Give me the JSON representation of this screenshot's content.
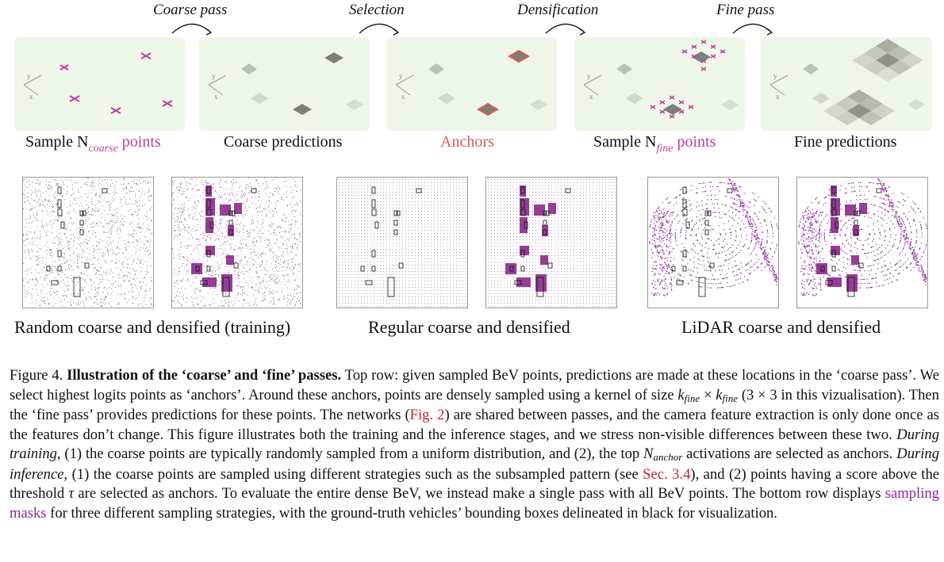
{
  "steps": [
    "Coarse pass",
    "Selection",
    "Densification",
    "Fine pass"
  ],
  "panels": {
    "p1": {
      "pre": "Sample N",
      "sub": "coarse",
      "post": " points"
    },
    "p2": {
      "label": "Coarse predictions"
    },
    "p3": {
      "label": "Anchors"
    },
    "p4": {
      "pre": "Sample N",
      "sub": "fine",
      "post": " points"
    },
    "p5": {
      "label": "Fine predictions"
    }
  },
  "axes": {
    "x": "x",
    "y": "y"
  },
  "groups": [
    "Random coarse and densified (training)",
    "Regular coarse and densified",
    "LiDAR coarse and densified"
  ],
  "caption": {
    "fig": "Figure 4. ",
    "title": "Illustration of the ‘coarse’ and ‘fine’ passes.",
    "t1": " Top row: given sampled BeV points, predictions are made at these locations in the ‘coarse pass’. We select highest logits points as ‘anchors’. Around these anchors, points are densely sampled using a kernel of size ",
    "k1": "k",
    "k1sub": "fine",
    "times": " × ",
    "k2": "k",
    "k2sub": "fine",
    "t2": " (3 × 3 in this vizualisation). Then the ‘fine pass’ provides predictions for these points. The networks (",
    "ref1": "Fig. 2",
    "t3": ") are shared between passes, and the camera feature extraction is only done once as the features don’t change. This figure illustrates both the training and the inference stages, and we stress non-visible differences between these two. ",
    "dt": "During training",
    "t4": ", (1) the coarse points are typically randomly sampled from a uniform distribution, and (2), the top ",
    "nanchor": "N",
    "nanchorsub": "anchor",
    "t5": " activations are selected as anchors. ",
    "di": "During inference",
    "t6": ", (1) the coarse points are sampled using different strategies such as the subsampled pattern (see ",
    "ref2": "Sec. 3.4",
    "t7": "), and (2) points having a score above the threshold ",
    "tau": "τ",
    "t8": " are selected as anchors. To evaluate the entire dense BeV, we instead make a single pass with all BeV points. The bottom row displays ",
    "sm": "sampling masks",
    "t9": " for three different sampling strategies, with the ground-truth vehicles’ bounding boxes delineated in black for visualization."
  }
}
